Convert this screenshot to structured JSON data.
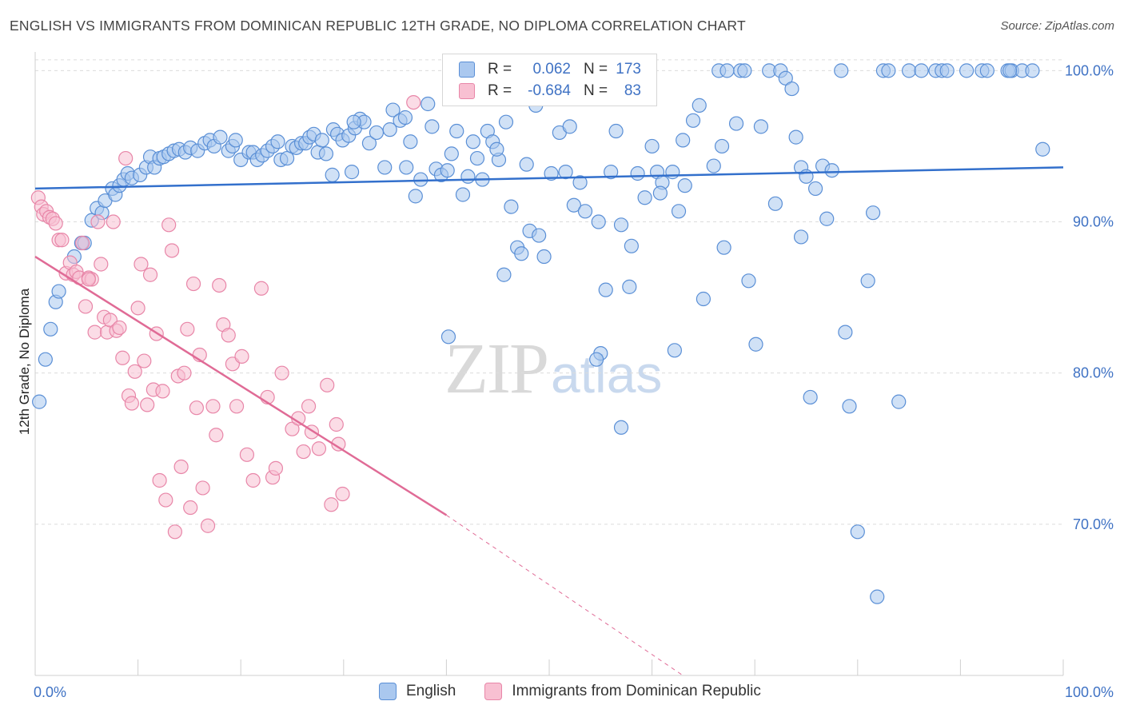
{
  "title": "ENGLISH VS IMMIGRANTS FROM DOMINICAN REPUBLIC 12TH GRADE, NO DIPLOMA CORRELATION CHART",
  "source": "Source: ZipAtlas.com",
  "watermark": {
    "zip": "ZIP",
    "atlas": "atlas"
  },
  "legend_stats": [
    {
      "r_label": "R =",
      "r_value": "0.062",
      "n_label": "N =",
      "n_value": "173"
    },
    {
      "r_label": "R =",
      "r_value": "-0.684",
      "n_label": "N =",
      "n_value": "83"
    }
  ],
  "colors": {
    "english_fill": "#aac8ef",
    "english_stroke": "#5a8fd6",
    "english_line": "#3370cc",
    "dominican_fill": "#f8c0d2",
    "dominican_stroke": "#e886a8",
    "dominican_line": "#e06b96",
    "tick_text": "#3f72c4",
    "grid": "#dcdcdc"
  },
  "chart_data": {
    "type": "scatter",
    "title": "ENGLISH VS IMMIGRANTS FROM DOMINICAN REPUBLIC 12TH GRADE, NO DIPLOMA CORRELATION CHART",
    "xlabel": "",
    "ylabel": "12th Grade, No Diploma",
    "xlim": [
      0,
      100
    ],
    "ylim": [
      60,
      101.5
    ],
    "x_tick_labels": [
      "0.0%",
      "100.0%"
    ],
    "y_ticks": [
      70,
      80,
      90,
      100
    ],
    "y_tick_labels": [
      "70.0%",
      "80.0%",
      "90.0%",
      "100.0%"
    ],
    "grid": "horizontal dashed",
    "legend": "bottom-center",
    "series": [
      {
        "name": "English",
        "stats": {
          "R": 0.062,
          "N": 173
        },
        "trend": {
          "x": [
            0,
            100
          ],
          "y": [
            92.2,
            93.6
          ]
        },
        "points": [
          [
            0.4,
            78.1
          ],
          [
            1.0,
            80.9
          ],
          [
            1.5,
            82.9
          ],
          [
            2.0,
            84.7
          ],
          [
            2.3,
            85.4
          ],
          [
            3.8,
            87.7
          ],
          [
            4.5,
            88.6
          ],
          [
            4.8,
            88.6
          ],
          [
            5.5,
            90.1
          ],
          [
            6.0,
            90.9
          ],
          [
            6.5,
            90.6
          ],
          [
            6.8,
            91.4
          ],
          [
            7.5,
            92.2
          ],
          [
            7.8,
            91.8
          ],
          [
            8.2,
            92.4
          ],
          [
            8.6,
            92.8
          ],
          [
            9.0,
            93.2
          ],
          [
            9.4,
            92.9
          ],
          [
            10.2,
            93.1
          ],
          [
            10.8,
            93.6
          ],
          [
            11.2,
            94.3
          ],
          [
            11.6,
            93.6
          ],
          [
            12.1,
            94.2
          ],
          [
            12.5,
            94.3
          ],
          [
            13.0,
            94.5
          ],
          [
            13.5,
            94.7
          ],
          [
            14.0,
            94.8
          ],
          [
            14.6,
            94.6
          ],
          [
            15.1,
            94.9
          ],
          [
            15.8,
            94.7
          ],
          [
            16.5,
            95.2
          ],
          [
            17.0,
            95.4
          ],
          [
            17.4,
            95.0
          ],
          [
            18.0,
            95.6
          ],
          [
            18.8,
            94.7
          ],
          [
            19.2,
            95.0
          ],
          [
            19.5,
            95.4
          ],
          [
            20.0,
            94.1
          ],
          [
            20.8,
            94.6
          ],
          [
            21.2,
            94.6
          ],
          [
            21.6,
            94.1
          ],
          [
            22.1,
            94.4
          ],
          [
            22.6,
            94.7
          ],
          [
            23.1,
            95.0
          ],
          [
            23.6,
            95.3
          ],
          [
            23.9,
            94.1
          ],
          [
            24.5,
            94.2
          ],
          [
            25.0,
            95.0
          ],
          [
            25.4,
            94.9
          ],
          [
            25.9,
            95.2
          ],
          [
            26.3,
            95.2
          ],
          [
            26.7,
            95.6
          ],
          [
            27.1,
            95.8
          ],
          [
            27.5,
            94.6
          ],
          [
            27.9,
            95.4
          ],
          [
            28.3,
            94.5
          ],
          [
            29.0,
            96.1
          ],
          [
            29.4,
            95.8
          ],
          [
            29.9,
            95.4
          ],
          [
            30.5,
            95.7
          ],
          [
            30.8,
            93.3
          ],
          [
            31.1,
            96.2
          ],
          [
            31.6,
            96.8
          ],
          [
            32.0,
            96.6
          ],
          [
            32.5,
            95.2
          ],
          [
            33.2,
            95.9
          ],
          [
            34.0,
            93.6
          ],
          [
            34.5,
            96.1
          ],
          [
            34.8,
            97.4
          ],
          [
            35.5,
            96.7
          ],
          [
            36.0,
            96.9
          ],
          [
            36.5,
            95.3
          ],
          [
            37.0,
            91.7
          ],
          [
            37.5,
            92.8
          ],
          [
            38.2,
            97.8
          ],
          [
            38.6,
            96.3
          ],
          [
            39.0,
            93.5
          ],
          [
            39.5,
            93.1
          ],
          [
            40.1,
            93.4
          ],
          [
            40.5,
            94.5
          ],
          [
            41.0,
            96.0
          ],
          [
            41.6,
            91.8
          ],
          [
            42.1,
            93.0
          ],
          [
            42.6,
            95.3
          ],
          [
            43.0,
            94.2
          ],
          [
            43.5,
            92.8
          ],
          [
            44.0,
            96.0
          ],
          [
            44.5,
            95.3
          ],
          [
            45.1,
            94.1
          ],
          [
            45.8,
            96.6
          ],
          [
            46.3,
            91.0
          ],
          [
            46.9,
            88.3
          ],
          [
            47.3,
            87.9
          ],
          [
            47.8,
            93.8
          ],
          [
            48.1,
            89.4
          ],
          [
            48.7,
            97.7
          ],
          [
            49.0,
            89.1
          ],
          [
            49.5,
            87.7
          ],
          [
            50.2,
            93.2
          ],
          [
            51.0,
            95.9
          ],
          [
            51.6,
            93.3
          ],
          [
            52.0,
            96.3
          ],
          [
            52.4,
            91.1
          ],
          [
            53.0,
            92.6
          ],
          [
            53.5,
            90.7
          ],
          [
            54.2,
            99.3
          ],
          [
            54.8,
            90.0
          ],
          [
            55.5,
            85.5
          ],
          [
            56.0,
            93.3
          ],
          [
            56.5,
            96.0
          ],
          [
            57.0,
            89.8
          ],
          [
            57.8,
            85.7
          ],
          [
            58.6,
            93.2
          ],
          [
            59.3,
            91.6
          ],
          [
            60.0,
            95.0
          ],
          [
            60.5,
            93.3
          ],
          [
            61.0,
            92.6
          ],
          [
            62.0,
            93.3
          ],
          [
            62.6,
            90.7
          ],
          [
            63.0,
            95.4
          ],
          [
            64.0,
            96.7
          ],
          [
            64.6,
            97.7
          ],
          [
            65.0,
            84.9
          ],
          [
            66.0,
            93.7
          ],
          [
            66.5,
            100.0
          ],
          [
            67.0,
            88.3
          ],
          [
            68.2,
            96.5
          ],
          [
            68.6,
            100.0
          ],
          [
            69.0,
            100.0
          ],
          [
            69.4,
            86.1
          ],
          [
            70.1,
            81.9
          ],
          [
            70.6,
            96.3
          ],
          [
            71.4,
            100.0
          ],
          [
            72.0,
            91.2
          ],
          [
            72.5,
            100.0
          ],
          [
            73.0,
            99.5
          ],
          [
            73.6,
            98.8
          ],
          [
            74.0,
            95.6
          ],
          [
            74.5,
            93.6
          ],
          [
            75.0,
            93.0
          ],
          [
            75.4,
            78.4
          ],
          [
            75.9,
            92.2
          ],
          [
            76.6,
            93.7
          ],
          [
            77.0,
            90.2
          ],
          [
            77.5,
            93.4
          ],
          [
            78.4,
            100.0
          ],
          [
            78.8,
            82.7
          ],
          [
            79.2,
            77.8
          ],
          [
            80.0,
            69.5
          ],
          [
            81.0,
            86.1
          ],
          [
            81.5,
            90.6
          ],
          [
            81.9,
            65.2
          ],
          [
            82.5,
            100.0
          ],
          [
            83.0,
            100.0
          ],
          [
            84.0,
            78.1
          ],
          [
            85.0,
            100.0
          ],
          [
            86.2,
            100.0
          ],
          [
            87.6,
            100.0
          ],
          [
            88.2,
            100.0
          ],
          [
            88.7,
            100.0
          ],
          [
            90.6,
            100.0
          ],
          [
            92.1,
            100.0
          ],
          [
            92.6,
            100.0
          ],
          [
            94.6,
            100.0
          ],
          [
            95.0,
            100.0
          ],
          [
            96.0,
            100.0
          ],
          [
            97.0,
            100.0
          ],
          [
            98.0,
            94.8
          ],
          [
            94.8,
            100.0
          ],
          [
            66.8,
            95.0
          ],
          [
            63.2,
            92.4
          ],
          [
            58.0,
            88.4
          ],
          [
            60.8,
            91.9
          ],
          [
            44.9,
            94.8
          ],
          [
            40.2,
            82.4
          ],
          [
            55.0,
            81.3
          ],
          [
            62.2,
            81.5
          ],
          [
            54.6,
            80.9
          ],
          [
            45.6,
            86.5
          ],
          [
            36.1,
            93.6
          ],
          [
            57.0,
            76.4
          ],
          [
            67.3,
            100.0
          ],
          [
            28.9,
            93.1
          ],
          [
            74.5,
            89.0
          ],
          [
            31.0,
            96.6
          ]
        ]
      },
      {
        "name": "Immigrants from Dominican Republic",
        "stats": {
          "R": -0.684,
          "N": 83
        },
        "trend": {
          "x": [
            0,
            40
          ],
          "y": [
            87.7,
            70.6
          ]
        },
        "trend_dashed": {
          "x": [
            40,
            63
          ],
          "y": [
            70.6,
            60.0
          ]
        },
        "points": [
          [
            0.3,
            91.6
          ],
          [
            0.6,
            91.0
          ],
          [
            0.8,
            90.5
          ],
          [
            1.1,
            90.7
          ],
          [
            1.4,
            90.3
          ],
          [
            1.7,
            90.2
          ],
          [
            2.0,
            89.9
          ],
          [
            2.3,
            88.8
          ],
          [
            2.6,
            88.8
          ],
          [
            3.0,
            86.6
          ],
          [
            3.4,
            87.3
          ],
          [
            3.7,
            86.5
          ],
          [
            4.0,
            86.7
          ],
          [
            4.3,
            86.3
          ],
          [
            4.6,
            88.6
          ],
          [
            4.9,
            84.4
          ],
          [
            5.2,
            86.3
          ],
          [
            5.5,
            86.2
          ],
          [
            5.8,
            82.7
          ],
          [
            6.1,
            90.0
          ],
          [
            6.4,
            87.2
          ],
          [
            6.7,
            83.7
          ],
          [
            7.0,
            82.7
          ],
          [
            7.3,
            83.5
          ],
          [
            7.6,
            90.0
          ],
          [
            7.9,
            82.8
          ],
          [
            8.2,
            83.0
          ],
          [
            8.5,
            81.0
          ],
          [
            8.8,
            94.2
          ],
          [
            9.1,
            78.5
          ],
          [
            9.4,
            78.0
          ],
          [
            9.7,
            80.1
          ],
          [
            10.0,
            84.3
          ],
          [
            10.3,
            87.2
          ],
          [
            10.6,
            80.8
          ],
          [
            10.9,
            77.9
          ],
          [
            11.2,
            86.5
          ],
          [
            11.5,
            78.9
          ],
          [
            11.8,
            82.6
          ],
          [
            12.1,
            72.9
          ],
          [
            12.4,
            78.8
          ],
          [
            12.7,
            71.6
          ],
          [
            13.0,
            89.8
          ],
          [
            13.3,
            88.1
          ],
          [
            13.6,
            69.5
          ],
          [
            13.9,
            79.8
          ],
          [
            14.2,
            73.8
          ],
          [
            14.5,
            80.0
          ],
          [
            14.8,
            82.9
          ],
          [
            15.1,
            71.1
          ],
          [
            15.4,
            85.9
          ],
          [
            15.7,
            77.7
          ],
          [
            16.0,
            81.2
          ],
          [
            16.3,
            72.4
          ],
          [
            16.8,
            69.9
          ],
          [
            17.3,
            77.8
          ],
          [
            17.6,
            75.9
          ],
          [
            17.9,
            85.8
          ],
          [
            18.3,
            83.2
          ],
          [
            18.8,
            82.5
          ],
          [
            19.2,
            80.6
          ],
          [
            19.6,
            77.8
          ],
          [
            20.1,
            81.1
          ],
          [
            20.6,
            74.6
          ],
          [
            21.2,
            72.9
          ],
          [
            22.0,
            85.6
          ],
          [
            22.6,
            78.4
          ],
          [
            23.1,
            73.1
          ],
          [
            23.4,
            73.7
          ],
          [
            24.0,
            80.0
          ],
          [
            25.0,
            76.3
          ],
          [
            25.6,
            77.0
          ],
          [
            26.1,
            74.8
          ],
          [
            26.6,
            77.8
          ],
          [
            26.9,
            76.1
          ],
          [
            27.6,
            75.0
          ],
          [
            28.4,
            79.2
          ],
          [
            28.8,
            71.3
          ],
          [
            29.3,
            76.6
          ],
          [
            29.5,
            75.3
          ],
          [
            29.9,
            72.0
          ],
          [
            36.8,
            97.9
          ],
          [
            5.2,
            86.2
          ]
        ]
      }
    ]
  }
}
